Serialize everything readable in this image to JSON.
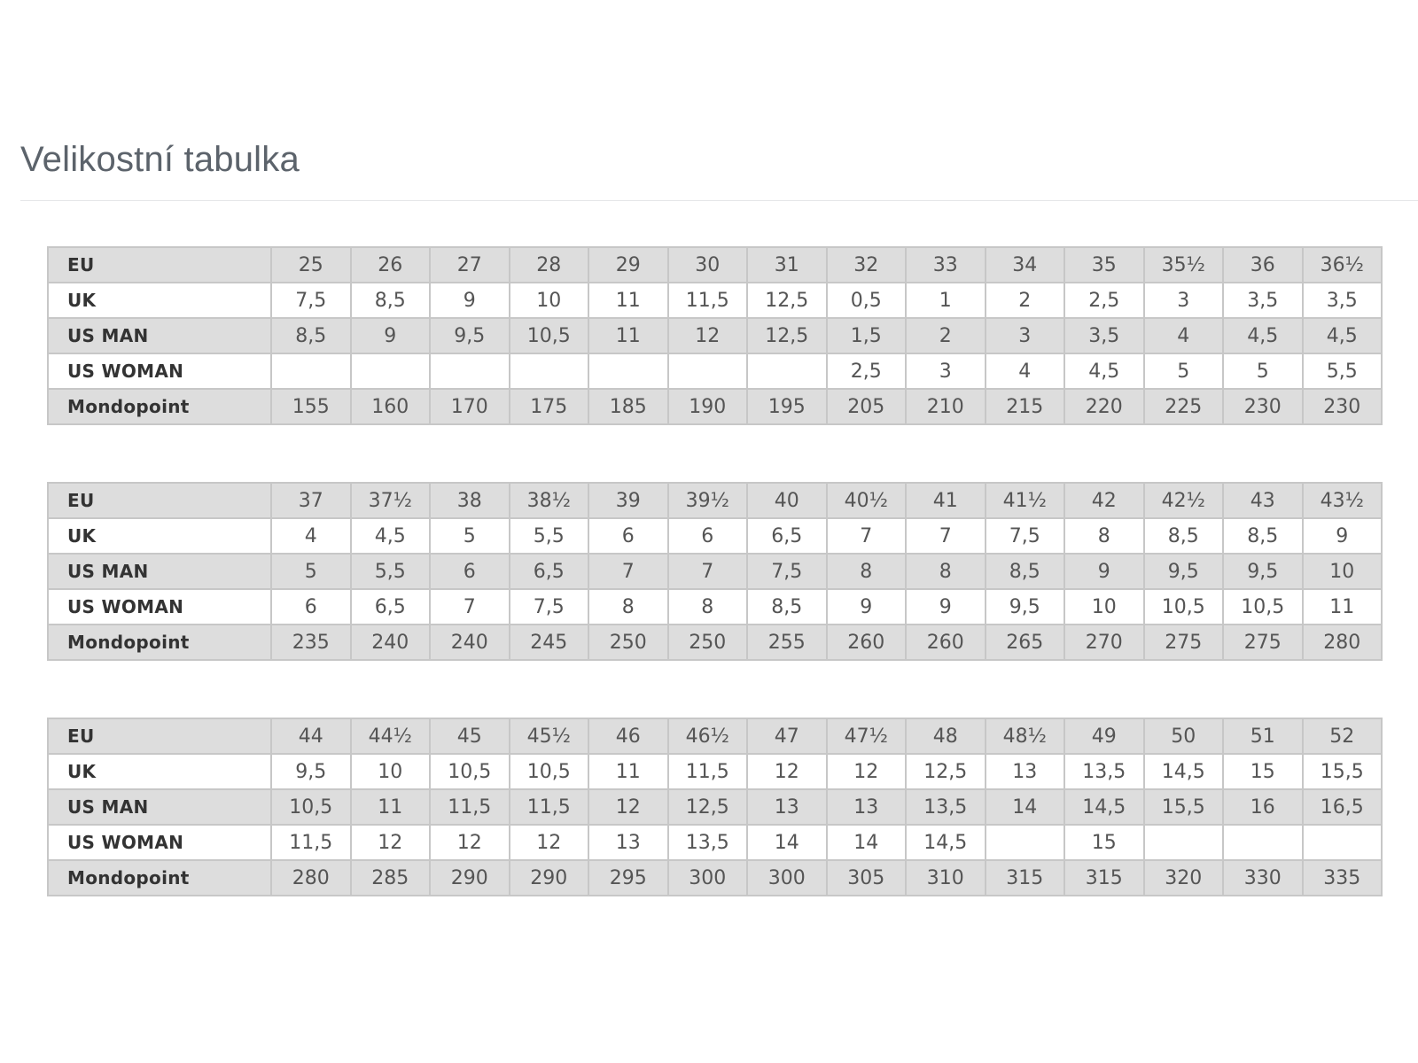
{
  "page": {
    "title": "Velikostní tabulka"
  },
  "tables": [
    {
      "rows": [
        {
          "label": "EU",
          "values": [
            "25",
            "26",
            "27",
            "28",
            "29",
            "30",
            "31",
            "32",
            "33",
            "34",
            "35",
            "35½",
            "36",
            "36½"
          ]
        },
        {
          "label": "UK",
          "values": [
            "7,5",
            "8,5",
            "9",
            "10",
            "11",
            "11,5",
            "12,5",
            "0,5",
            "1",
            "2",
            "2,5",
            "3",
            "3,5",
            "3,5"
          ]
        },
        {
          "label": "US MAN",
          "values": [
            "8,5",
            "9",
            "9,5",
            "10,5",
            "11",
            "12",
            "12,5",
            "1,5",
            "2",
            "3",
            "3,5",
            "4",
            "4,5",
            "4,5"
          ]
        },
        {
          "label": "US WOMAN",
          "values": [
            "",
            "",
            "",
            "",
            "",
            "",
            "",
            "2,5",
            "3",
            "4",
            "4,5",
            "5",
            "5",
            "5,5"
          ]
        },
        {
          "label": "Mondopoint",
          "values": [
            "155",
            "160",
            "170",
            "175",
            "185",
            "190",
            "195",
            "205",
            "210",
            "215",
            "220",
            "225",
            "230",
            "230"
          ]
        }
      ]
    },
    {
      "rows": [
        {
          "label": "EU",
          "values": [
            "37",
            "37½",
            "38",
            "38½",
            "39",
            "39½",
            "40",
            "40½",
            "41",
            "41½",
            "42",
            "42½",
            "43",
            "43½"
          ]
        },
        {
          "label": "UK",
          "values": [
            "4",
            "4,5",
            "5",
            "5,5",
            "6",
            "6",
            "6,5",
            "7",
            "7",
            "7,5",
            "8",
            "8,5",
            "8,5",
            "9"
          ]
        },
        {
          "label": "US MAN",
          "values": [
            "5",
            "5,5",
            "6",
            "6,5",
            "7",
            "7",
            "7,5",
            "8",
            "8",
            "8,5",
            "9",
            "9,5",
            "9,5",
            "10"
          ]
        },
        {
          "label": "US WOMAN",
          "values": [
            "6",
            "6,5",
            "7",
            "7,5",
            "8",
            "8",
            "8,5",
            "9",
            "9",
            "9,5",
            "10",
            "10,5",
            "10,5",
            "11"
          ]
        },
        {
          "label": "Mondopoint",
          "values": [
            "235",
            "240",
            "240",
            "245",
            "250",
            "250",
            "255",
            "260",
            "260",
            "265",
            "270",
            "275",
            "275",
            "280"
          ]
        }
      ]
    },
    {
      "rows": [
        {
          "label": "EU",
          "values": [
            "44",
            "44½",
            "45",
            "45½",
            "46",
            "46½",
            "47",
            "47½",
            "48",
            "48½",
            "49",
            "50",
            "51",
            "52"
          ]
        },
        {
          "label": "UK",
          "values": [
            "9,5",
            "10",
            "10,5",
            "10,5",
            "11",
            "11,5",
            "12",
            "12",
            "12,5",
            "13",
            "13,5",
            "14,5",
            "15",
            "15,5"
          ]
        },
        {
          "label": "US MAN",
          "values": [
            "10,5",
            "11",
            "11,5",
            "11,5",
            "12",
            "12,5",
            "13",
            "13",
            "13,5",
            "14",
            "14,5",
            "15,5",
            "16",
            "16,5"
          ]
        },
        {
          "label": "US WOMAN",
          "values": [
            "11,5",
            "12",
            "12",
            "12",
            "13",
            "13,5",
            "14",
            "14",
            "14,5",
            "",
            "15",
            "",
            "",
            ""
          ]
        },
        {
          "label": "Mondopoint",
          "values": [
            "280",
            "285",
            "290",
            "290",
            "295",
            "300",
            "300",
            "305",
            "310",
            "315",
            "315",
            "320",
            "330",
            "335"
          ]
        }
      ]
    }
  ]
}
